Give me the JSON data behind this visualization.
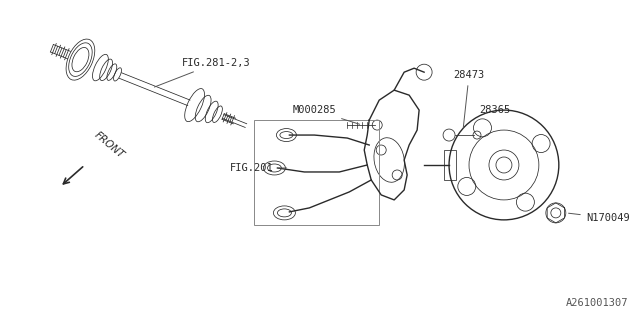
{
  "bg_color": "#ffffff",
  "line_color": "#2a2a2a",
  "label_color": "#2a2a2a",
  "thin_color": "#555555",
  "labels": {
    "FIG281": "FIG.281-2,3",
    "M000285": "M000285",
    "FIG201": "FIG.201",
    "28473": "28473",
    "28365": "28365",
    "N170049": "N170049"
  },
  "part_number": "A261001307",
  "front_text": "FRONT",
  "font_size": 7.5,
  "lw_main": 1.0,
  "lw_thin": 0.55,
  "lw_thick": 1.3,
  "fig_width": 6.4,
  "fig_height": 3.2,
  "dpi": 100
}
